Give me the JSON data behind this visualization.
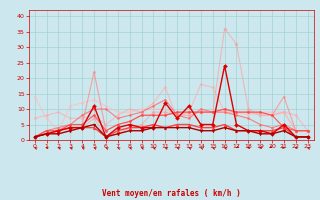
{
  "x": [
    0,
    1,
    2,
    3,
    4,
    5,
    6,
    7,
    8,
    9,
    10,
    11,
    12,
    13,
    14,
    15,
    16,
    17,
    18,
    19,
    20,
    21,
    22,
    23
  ],
  "series": [
    {
      "color": "#ff9999",
      "alpha": 0.6,
      "lw": 0.8,
      "marker": "*",
      "ms": 3,
      "values": [
        1,
        2,
        2,
        3,
        4,
        7,
        1,
        2,
        4,
        5,
        9,
        9,
        8,
        8,
        9,
        9,
        36,
        31,
        10,
        8,
        8,
        9,
        3,
        3
      ]
    },
    {
      "color": "#ffbbbb",
      "alpha": 0.7,
      "lw": 0.8,
      "marker": "o",
      "ms": 1.5,
      "values": [
        14,
        7,
        3,
        11,
        12,
        13,
        11,
        9,
        9,
        10,
        10,
        10,
        8,
        9,
        9,
        9,
        9,
        9,
        8,
        9,
        9,
        9,
        3,
        3
      ]
    },
    {
      "color": "#ffaaaa",
      "alpha": 0.7,
      "lw": 0.8,
      "marker": "o",
      "ms": 1.5,
      "values": [
        7,
        8,
        9,
        7,
        7,
        8,
        5,
        8,
        10,
        9,
        12,
        17,
        7,
        9,
        18,
        17,
        9,
        9,
        9,
        8,
        8,
        9,
        8,
        3
      ]
    },
    {
      "color": "#ff8888",
      "alpha": 0.75,
      "lw": 0.8,
      "marker": "o",
      "ms": 1.5,
      "values": [
        1,
        3,
        3,
        5,
        5,
        22,
        3,
        5,
        6,
        8,
        8,
        8,
        9,
        9,
        9,
        9,
        10,
        9,
        9,
        9,
        8,
        14,
        3,
        3
      ]
    },
    {
      "color": "#ff6666",
      "alpha": 0.8,
      "lw": 0.8,
      "marker": "o",
      "ms": 1.5,
      "values": [
        1,
        3,
        4,
        5,
        8,
        10,
        10,
        7,
        8,
        9,
        11,
        13,
        8,
        7,
        10,
        9,
        9,
        8,
        7,
        5,
        4,
        5,
        3,
        3
      ]
    },
    {
      "color": "#ff4444",
      "alpha": 0.85,
      "lw": 0.8,
      "marker": "o",
      "ms": 1.5,
      "values": [
        1,
        3,
        3,
        5,
        5,
        8,
        3,
        5,
        6,
        8,
        8,
        8,
        9,
        9,
        9,
        9,
        10,
        9,
        9,
        9,
        8,
        4,
        3,
        3
      ]
    },
    {
      "color": "#ff3333",
      "alpha": 0.9,
      "lw": 1.0,
      "marker": "^",
      "ms": 2,
      "values": [
        1,
        2,
        3,
        4,
        4,
        4,
        1,
        3,
        4,
        4,
        5,
        4,
        5,
        5,
        4,
        4,
        5,
        3,
        3,
        3,
        3,
        4,
        1,
        1
      ]
    },
    {
      "color": "#dd0000",
      "alpha": 1.0,
      "lw": 1.0,
      "marker": "D",
      "ms": 2,
      "values": [
        1,
        2,
        3,
        4,
        4,
        11,
        1,
        4,
        5,
        4,
        4,
        12,
        7,
        11,
        5,
        5,
        24,
        5,
        3,
        3,
        2,
        5,
        1,
        1
      ]
    },
    {
      "color": "#aa0000",
      "alpha": 1.0,
      "lw": 1.0,
      "marker": "v",
      "ms": 2,
      "values": [
        1,
        2,
        2,
        3,
        4,
        5,
        1,
        2,
        3,
        3,
        4,
        4,
        4,
        4,
        3,
        3,
        4,
        3,
        3,
        2,
        2,
        3,
        1,
        1
      ]
    }
  ],
  "xlabel": "Vent moyen/en rafales ( km/h )",
  "ylim": [
    0,
    42
  ],
  "xlim": [
    -0.5,
    23.5
  ],
  "yticks": [
    0,
    5,
    10,
    15,
    20,
    25,
    30,
    35,
    40
  ],
  "xticks": [
    0,
    1,
    2,
    3,
    4,
    5,
    6,
    7,
    8,
    9,
    10,
    11,
    12,
    13,
    14,
    15,
    16,
    17,
    18,
    19,
    20,
    21,
    22,
    23
  ],
  "bg_color": "#cce8ee",
  "grid_color": "#99cccc",
  "tick_color": "#cc0000",
  "label_color": "#cc0000",
  "arrow_color": "#cc0000",
  "arrow_angles": [
    225,
    270,
    225,
    225,
    225,
    225,
    225,
    225,
    225,
    225,
    225,
    225,
    225,
    225,
    225,
    225,
    225,
    315,
    270,
    270,
    45,
    90,
    270,
    225
  ]
}
